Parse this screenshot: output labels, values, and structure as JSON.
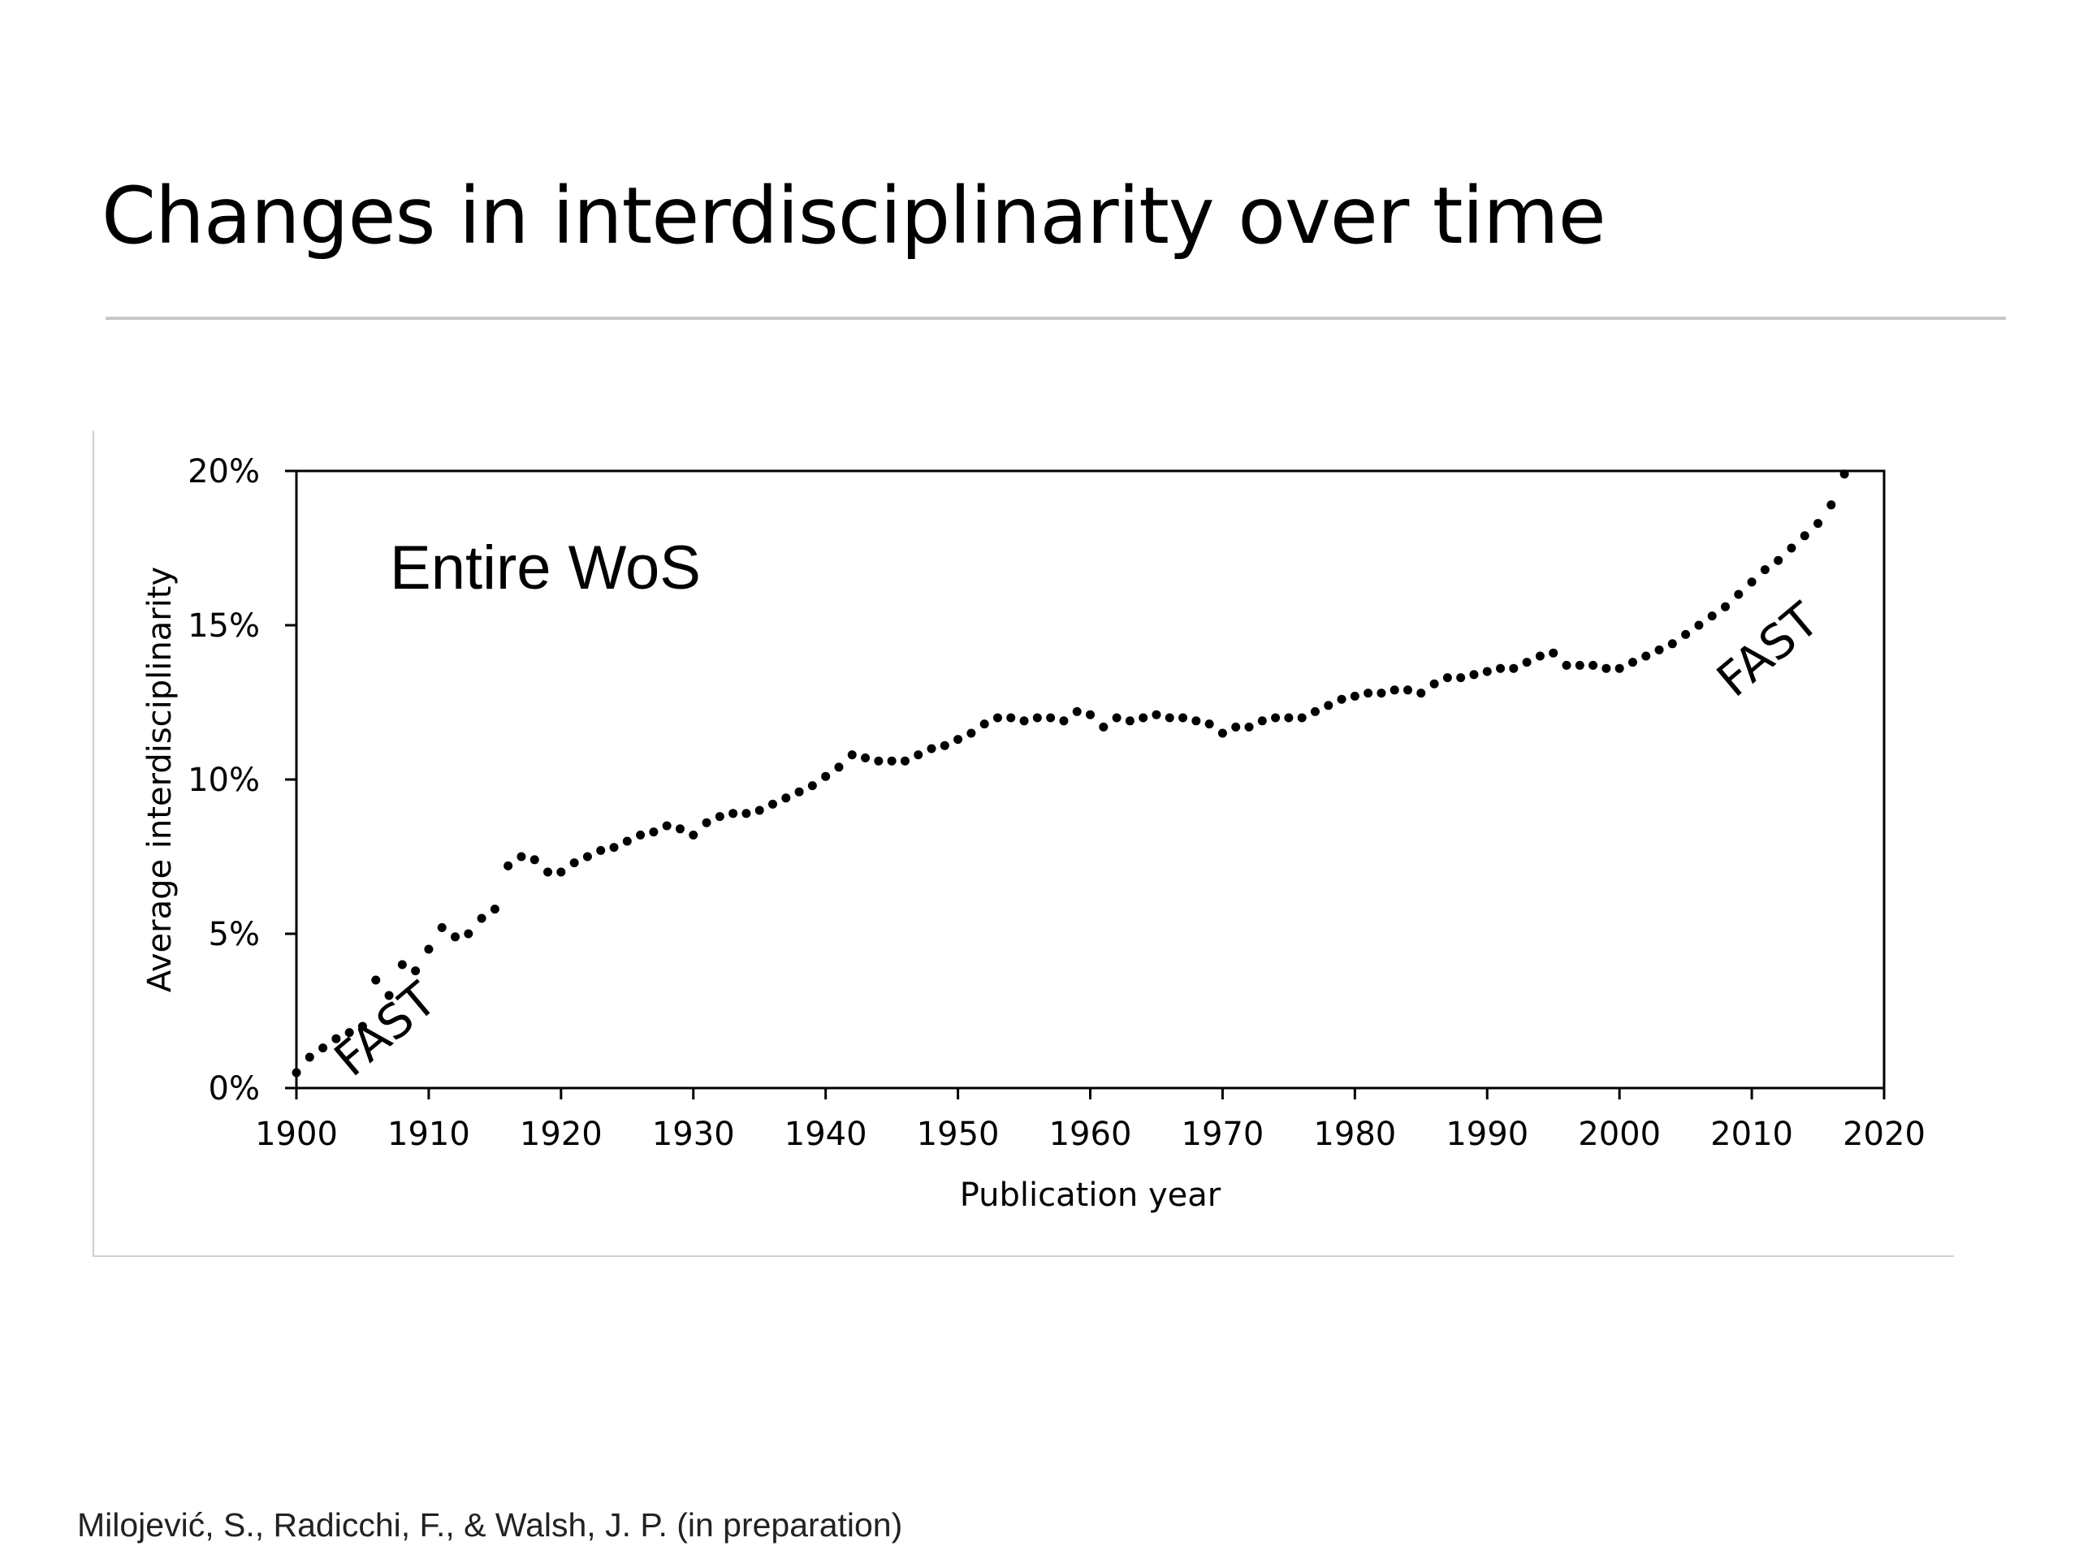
{
  "slide": {
    "title": "Changes in interdisciplinarity over time",
    "citation": "Milojević, S., Radicchi, F., & Walsh, J. P.  (in preparation)"
  },
  "chart_data": {
    "type": "scatter",
    "title": "",
    "panel_label": "Entire WoS",
    "xlabel": "Publication year",
    "ylabel": "Average interdisciplinarity",
    "xlim": [
      1900,
      2020
    ],
    "ylim": [
      0,
      20
    ],
    "x_ticks": [
      1900,
      1910,
      1920,
      1930,
      1940,
      1950,
      1960,
      1970,
      1980,
      1990,
      2000,
      2010,
      2020
    ],
    "x_tick_labels": [
      "1900",
      "1910",
      "1920",
      "1930",
      "1940",
      "1950",
      "1960",
      "1970",
      "1980",
      "1990",
      "2000",
      "2010",
      "2020"
    ],
    "y_ticks": [
      0,
      5,
      10,
      15,
      20
    ],
    "y_tick_labels": [
      "0%",
      "5%",
      "10%",
      "15%",
      "20%"
    ],
    "grid": false,
    "annotations": [
      {
        "text": "FAST",
        "x": 1907.5,
        "y": 1.5,
        "angle": -40
      },
      {
        "text": "FAST",
        "x": 2012,
        "y": 13.8,
        "angle": -40
      }
    ],
    "series": [
      {
        "name": "Entire WoS",
        "marker": "dot",
        "color": "#000000",
        "x": [
          1900,
          1901,
          1902,
          1903,
          1904,
          1905,
          1906,
          1907,
          1908,
          1909,
          1910,
          1911,
          1912,
          1913,
          1914,
          1915,
          1916,
          1917,
          1918,
          1919,
          1920,
          1921,
          1922,
          1923,
          1924,
          1925,
          1926,
          1927,
          1928,
          1929,
          1930,
          1931,
          1932,
          1933,
          1934,
          1935,
          1936,
          1937,
          1938,
          1939,
          1940,
          1941,
          1942,
          1943,
          1944,
          1945,
          1946,
          1947,
          1948,
          1949,
          1950,
          1951,
          1952,
          1953,
          1954,
          1955,
          1956,
          1957,
          1958,
          1959,
          1960,
          1961,
          1962,
          1963,
          1964,
          1965,
          1966,
          1967,
          1968,
          1969,
          1970,
          1971,
          1972,
          1973,
          1974,
          1975,
          1976,
          1977,
          1978,
          1979,
          1980,
          1981,
          1982,
          1983,
          1984,
          1985,
          1986,
          1987,
          1988,
          1989,
          1990,
          1991,
          1992,
          1993,
          1994,
          1995,
          1996,
          1997,
          1998,
          1999,
          2000,
          2001,
          2002,
          2003,
          2004,
          2005,
          2006,
          2007,
          2008,
          2009,
          2010,
          2011,
          2012,
          2013,
          2014,
          2015,
          2016,
          2017
        ],
        "values": [
          0.5,
          1.0,
          1.3,
          1.6,
          1.8,
          2.0,
          3.5,
          3.0,
          4.0,
          3.8,
          4.5,
          5.2,
          4.9,
          5.0,
          5.5,
          5.8,
          7.2,
          7.5,
          7.4,
          7.0,
          7.0,
          7.3,
          7.5,
          7.7,
          7.8,
          8.0,
          8.2,
          8.3,
          8.5,
          8.4,
          8.2,
          8.6,
          8.8,
          8.9,
          8.9,
          9.0,
          9.2,
          9.4,
          9.6,
          9.8,
          10.1,
          10.4,
          10.8,
          10.7,
          10.6,
          10.6,
          10.6,
          10.8,
          11.0,
          11.1,
          11.3,
          11.5,
          11.8,
          12.0,
          12.0,
          11.9,
          12.0,
          12.0,
          11.9,
          12.2,
          12.1,
          11.7,
          12.0,
          11.9,
          12.0,
          12.1,
          12.0,
          12.0,
          11.9,
          11.8,
          11.5,
          11.7,
          11.7,
          11.9,
          12.0,
          12.0,
          12.0,
          12.2,
          12.4,
          12.6,
          12.7,
          12.8,
          12.8,
          12.9,
          12.9,
          12.8,
          13.1,
          13.3,
          13.3,
          13.4,
          13.5,
          13.6,
          13.6,
          13.8,
          14.0,
          14.1,
          13.7,
          13.7,
          13.7,
          13.6,
          13.6,
          13.8,
          14.0,
          14.2,
          14.4,
          14.7,
          15.0,
          15.3,
          15.6,
          16.0,
          16.4,
          16.8,
          17.1,
          17.5,
          17.9,
          18.3,
          18.9,
          19.9
        ]
      }
    ]
  }
}
